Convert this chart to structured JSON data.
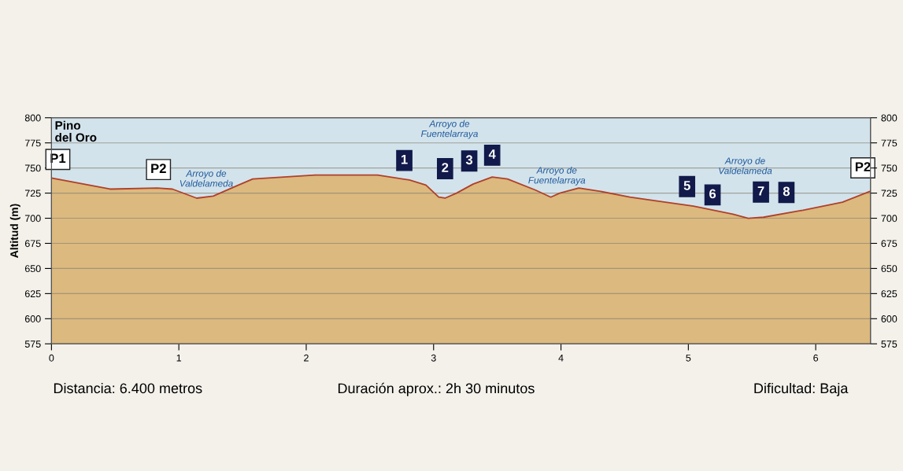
{
  "chart_data": {
    "type": "area",
    "ylabel": "Altitud (m)",
    "x": [
      0,
      0.46,
      0.83,
      0.95,
      1.14,
      1.27,
      1.45,
      1.58,
      2.07,
      2.56,
      2.81,
      2.94,
      3.04,
      3.09,
      3.18,
      3.31,
      3.46,
      3.58,
      3.8,
      3.92,
      3.99,
      4.14,
      4.3,
      4.54,
      5.04,
      5.35,
      5.47,
      5.59,
      5.9,
      6.21,
      6.43
    ],
    "series": [
      {
        "color": "#b0402a",
        "values": [
          740,
          729,
          730,
          729,
          720,
          722,
          732,
          739,
          743,
          743,
          738,
          733,
          721,
          720,
          725,
          734,
          741,
          739,
          728,
          721,
          725,
          730,
          727,
          721,
          712,
          704,
          700,
          701,
          708,
          716,
          727
        ]
      }
    ],
    "xlim": [
      0,
      6.43
    ],
    "xticks": [
      0,
      1,
      2,
      3,
      4,
      5,
      6
    ],
    "ylim": [
      575,
      800
    ],
    "yticks": [
      575,
      600,
      625,
      650,
      675,
      700,
      725,
      750,
      775,
      800
    ],
    "y2lim": [
      575,
      800
    ],
    "y2ticks": [
      575,
      600,
      625,
      650,
      675,
      700,
      725,
      750,
      775,
      800
    ],
    "grid": "y",
    "annotations": [
      "Pino\ndel Oro",
      "Arroyo de\nValdelameda",
      "Arroyo de\nFuentelarraya",
      "Arroyo de\nFuentelarraya",
      "Arroyo de\nValdelameda",
      "Distancia: 6.400 metros",
      "Duración aprox.: 2h 30 minutos",
      "Dificultad: Baja",
      {
        "text": "P1",
        "x": 0.05,
        "y": 739
      },
      {
        "text": "P2",
        "x": 0.84,
        "y": 730
      },
      {
        "text": "P2",
        "x": 6.37,
        "y": 724
      },
      {
        "text": "1",
        "x": 2.77,
        "y": 739
      },
      {
        "text": "2",
        "x": 3.09,
        "y": 720
      },
      {
        "text": "3",
        "x": 3.28,
        "y": 732
      },
      {
        "text": "4",
        "x": 3.46,
        "y": 741
      },
      {
        "text": "5",
        "x": 4.99,
        "y": 713
      },
      {
        "text": "6",
        "x": 5.19,
        "y": 708
      },
      {
        "text": "7",
        "x": 5.57,
        "y": 701
      },
      {
        "text": "8",
        "x": 5.77,
        "y": 705
      }
    ]
  }
}
